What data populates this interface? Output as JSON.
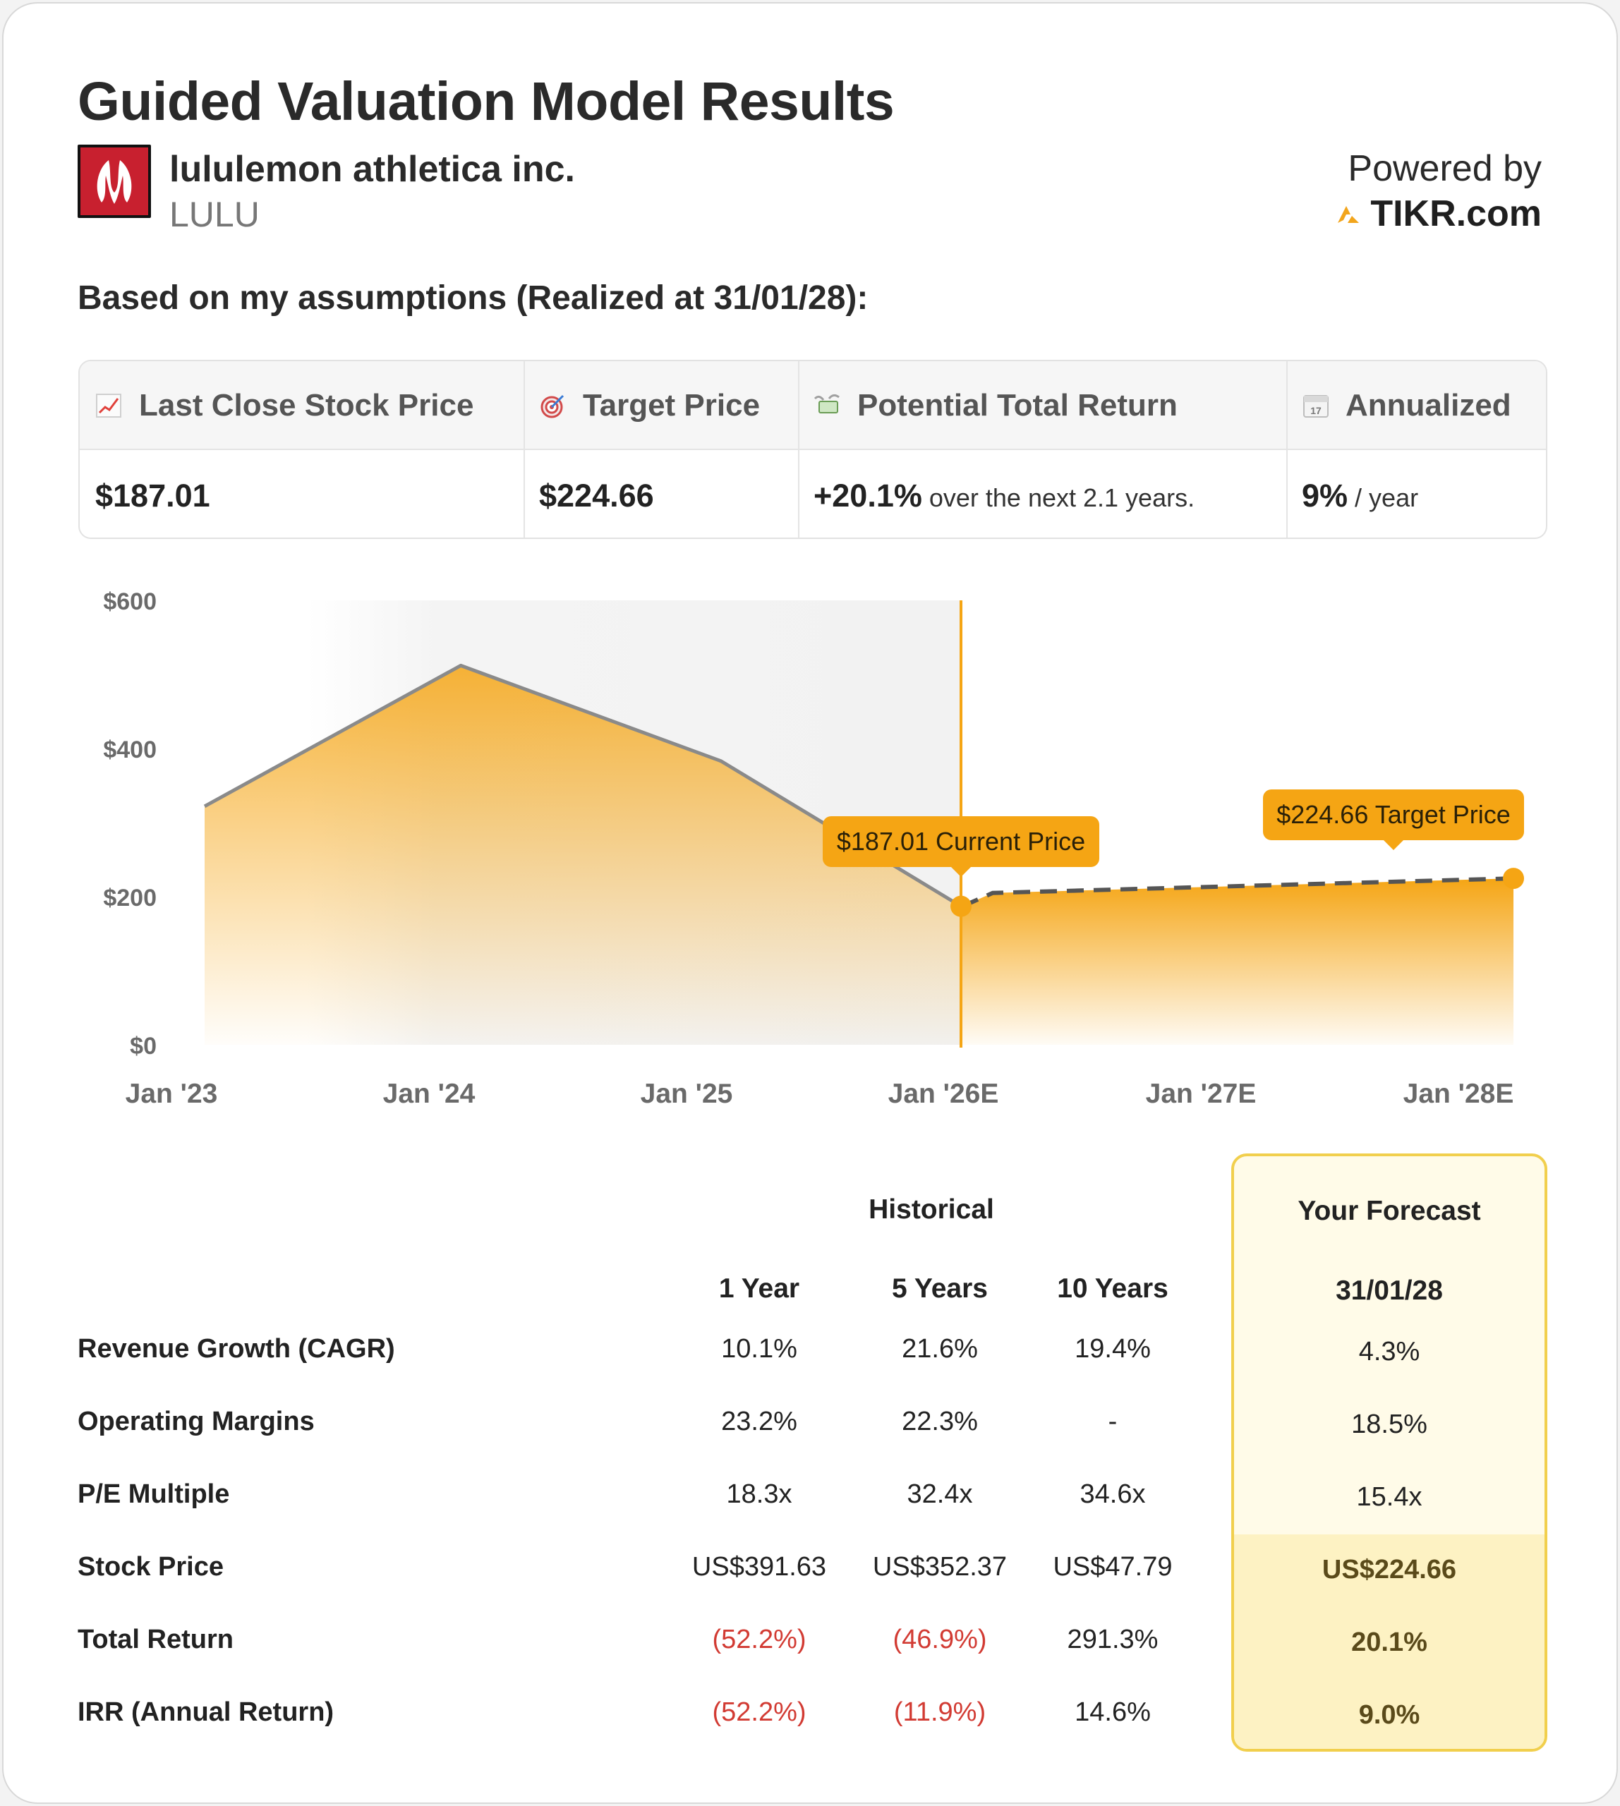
{
  "title": "Guided Valuation Model Results",
  "company": {
    "name": "lululemon athletica inc.",
    "ticker": "LULU",
    "logo_icon": "lululemon-logo-icon"
  },
  "powered": {
    "label": "Powered by",
    "brand": "TIKR.com"
  },
  "assumptions_label": "Based on my assumptions (Realized at 31/01/28):",
  "stats": [
    {
      "icon": "chart-increasing-icon",
      "label": "Last Close Stock Price",
      "value": "$187.01",
      "suffix": ""
    },
    {
      "icon": "direct-hit-target-icon",
      "label": "Target Price",
      "value": "$224.66",
      "suffix": ""
    },
    {
      "icon": "money-with-wings-icon",
      "label": "Potential Total Return",
      "value": "+20.1%",
      "suffix": "over the next 2.1 years."
    },
    {
      "icon": "calendar-icon",
      "label": "Annualized",
      "value": "9%",
      "suffix": "/ year"
    }
  ],
  "chart_data": {
    "type": "area",
    "x": [
      "Jan '23",
      "Jan '24",
      "Jan '25",
      "Jan '26E",
      "Jan '27E",
      "Jan '28E"
    ],
    "y_ticks": [
      "$0",
      "$200",
      "$400",
      "$600"
    ],
    "ylim": [
      0,
      600
    ],
    "historical": [
      {
        "x": "Jan '23",
        "y": 322
      },
      {
        "x": "Jan '24",
        "y": 512
      },
      {
        "x": "Jan '25",
        "y": 383
      },
      {
        "x": "Jan '26E",
        "y": 187.01
      }
    ],
    "forecast": [
      {
        "x": "Jan '26E",
        "y": 187.01
      },
      {
        "x": "Jan '28E",
        "y": 224.66
      }
    ],
    "current_label": "$187.01 Current Price",
    "target_label": "$224.66 Target Price",
    "colors": {
      "accent": "#f5a514",
      "line": "#8a8a8a",
      "dash": "#555555",
      "shade": "#f4f4f4"
    }
  },
  "table": {
    "historical_header": "Historical",
    "forecast_header": "Your Forecast",
    "periods": [
      "1 Year",
      "5 Years",
      "10 Years"
    ],
    "forecast_date": "31/01/28",
    "rows": [
      {
        "label": "Revenue Growth (CAGR)",
        "values": [
          "10.1%",
          "21.6%",
          "19.4%"
        ],
        "forecast": "4.3%"
      },
      {
        "label": "Operating Margins",
        "values": [
          "23.2%",
          "22.3%",
          "-"
        ],
        "forecast": "18.5%"
      },
      {
        "label": "P/E Multiple",
        "values": [
          "18.3x",
          "32.4x",
          "34.6x"
        ],
        "forecast": "15.4x"
      },
      {
        "label": "Stock Price",
        "values": [
          "US$391.63",
          "US$352.37",
          "US$47.79"
        ],
        "forecast": "US$224.66"
      },
      {
        "label": "Total Return",
        "values": [
          "(52.2%)",
          "(46.9%)",
          "291.3%"
        ],
        "forecast": "20.1%"
      },
      {
        "label": "IRR (Annual Return)",
        "values": [
          "(52.2%)",
          "(11.9%)",
          "14.6%"
        ],
        "forecast": "9.0%"
      }
    ]
  }
}
